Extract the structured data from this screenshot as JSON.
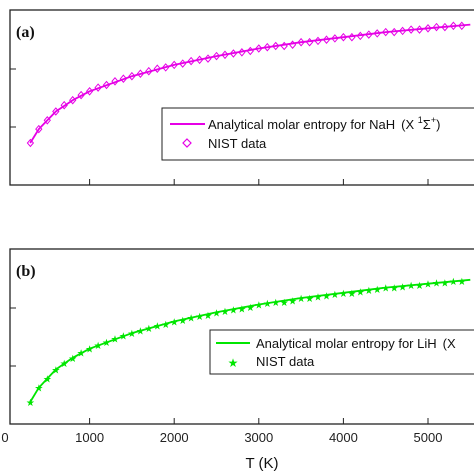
{
  "chart_data": [
    {
      "type": "line",
      "panel_label": "(a)",
      "xlim": [
        0,
        5500
      ],
      "ylim": [
        0,
        1
      ],
      "grid": false,
      "legend_position": "lower-right",
      "series": [
        {
          "name": "Analytical molar entropy for NaH",
          "name_suffix": "(X ",
          "name_sup1": "1",
          "name_sigma": "Σ",
          "name_sup2": "+",
          "name_end": ")",
          "color": "#e600e6",
          "style": "line",
          "x": [
            298,
            400,
            600,
            800,
            1000,
            1500,
            2000,
            2500,
            3000,
            3500,
            4000,
            4500,
            5000,
            5500
          ],
          "y": [
            0.0,
            0.11,
            0.25,
            0.34,
            0.41,
            0.53,
            0.62,
            0.69,
            0.75,
            0.8,
            0.84,
            0.88,
            0.91,
            0.94
          ]
        },
        {
          "name": "NIST data",
          "color": "#e600e6",
          "style": "marker-diamond",
          "x": [
            300,
            400,
            500,
            600,
            700,
            800,
            900,
            1000,
            1100,
            1200,
            1300,
            1400,
            1500,
            1600,
            1700,
            1800,
            1900,
            2000,
            2100,
            2200,
            2300,
            2400,
            2500,
            2600,
            2700,
            2800,
            2900,
            3000,
            3100,
            3200,
            3300,
            3400,
            3500,
            3600,
            3700,
            3800,
            3900,
            4000,
            4100,
            4200,
            4300,
            4400,
            4500,
            4600,
            4700,
            4800,
            4900,
            5000,
            5100,
            5200,
            5300,
            5400
          ],
          "y": [
            0.0,
            0.11,
            0.18,
            0.25,
            0.3,
            0.34,
            0.38,
            0.41,
            0.44,
            0.46,
            0.49,
            0.51,
            0.53,
            0.55,
            0.57,
            0.59,
            0.6,
            0.62,
            0.63,
            0.65,
            0.66,
            0.67,
            0.69,
            0.7,
            0.71,
            0.72,
            0.73,
            0.75,
            0.76,
            0.77,
            0.77,
            0.78,
            0.8,
            0.8,
            0.81,
            0.82,
            0.83,
            0.84,
            0.84,
            0.85,
            0.86,
            0.87,
            0.88,
            0.88,
            0.89,
            0.9,
            0.9,
            0.91,
            0.92,
            0.92,
            0.93,
            0.93
          ]
        }
      ]
    },
    {
      "type": "line",
      "panel_label": "(b)",
      "xlim": [
        0,
        5500
      ],
      "ylim": [
        0,
        1
      ],
      "grid": false,
      "legend_position": "lower-right",
      "series": [
        {
          "name": "Analytical molar entropy for LiH",
          "name_suffix": "(X",
          "color": "#00e600",
          "style": "line",
          "x": [
            298,
            400,
            600,
            800,
            1000,
            1500,
            2000,
            2500,
            3000,
            3500,
            4000,
            4500,
            5000,
            5500
          ],
          "y": [
            0.0,
            0.11,
            0.25,
            0.34,
            0.41,
            0.53,
            0.62,
            0.69,
            0.75,
            0.8,
            0.84,
            0.88,
            0.91,
            0.94
          ]
        },
        {
          "name": "NIST data",
          "color": "#00e600",
          "style": "marker-star",
          "x": [
            300,
            400,
            500,
            600,
            700,
            800,
            900,
            1000,
            1100,
            1200,
            1300,
            1400,
            1500,
            1600,
            1700,
            1800,
            1900,
            2000,
            2100,
            2200,
            2300,
            2400,
            2500,
            2600,
            2700,
            2800,
            2900,
            3000,
            3100,
            3200,
            3300,
            3400,
            3500,
            3600,
            3700,
            3800,
            3900,
            4000,
            4100,
            4200,
            4300,
            4400,
            4500,
            4600,
            4700,
            4800,
            4900,
            5000,
            5100,
            5200,
            5300,
            5400
          ],
          "y": [
            0.0,
            0.11,
            0.18,
            0.25,
            0.3,
            0.34,
            0.38,
            0.41,
            0.44,
            0.46,
            0.49,
            0.51,
            0.53,
            0.55,
            0.57,
            0.59,
            0.6,
            0.62,
            0.63,
            0.65,
            0.66,
            0.67,
            0.69,
            0.7,
            0.71,
            0.72,
            0.73,
            0.75,
            0.76,
            0.77,
            0.77,
            0.78,
            0.8,
            0.8,
            0.81,
            0.82,
            0.83,
            0.84,
            0.84,
            0.85,
            0.86,
            0.87,
            0.88,
            0.88,
            0.89,
            0.9,
            0.9,
            0.91,
            0.92,
            0.92,
            0.93,
            0.93
          ]
        }
      ]
    }
  ],
  "x_axis": {
    "label": "T (K)",
    "ticks": [
      "0",
      "1000",
      "2000",
      "3000",
      "4000",
      "5000"
    ],
    "tick_values": [
      0,
      1000,
      2000,
      3000,
      4000,
      5000
    ]
  }
}
